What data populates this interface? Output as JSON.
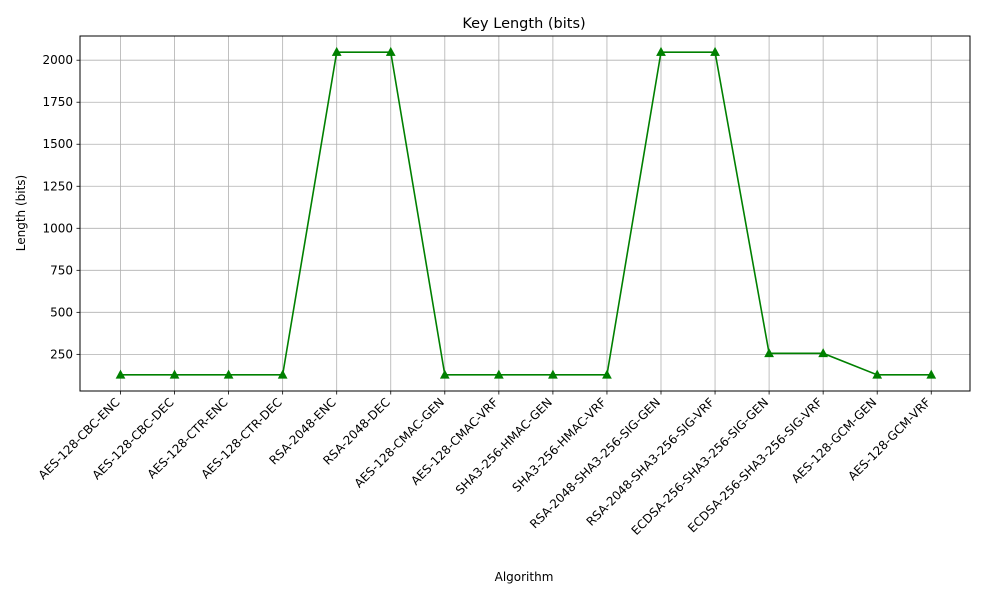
{
  "chart_data": {
    "type": "line",
    "title": "Key Length (bits)",
    "xlabel": "Algorithm",
    "ylabel": "Length (bits)",
    "categories": [
      "AES-128-CBC-ENC",
      "AES-128-CBC-DEC",
      "AES-128-CTR-ENC",
      "AES-128-CTR-DEC",
      "RSA-2048-ENC",
      "RSA-2048-DEC",
      "AES-128-CMAC-GEN",
      "AES-128-CMAC-VRF",
      "SHA3-256-HMAC-GEN",
      "SHA3-256-HMAC-VRF",
      "RSA-2048-SHA3-256-SIG-GEN",
      "RSA-2048-SHA3-256-SIG-VRF",
      "ECDSA-256-SHA3-256-SIG-GEN",
      "ECDSA-256-SHA3-256-SIG-VRF",
      "AES-128-GCM-GEN",
      "AES-128-GCM-VRF"
    ],
    "series": [
      {
        "values": [
          128,
          128,
          128,
          128,
          2048,
          2048,
          128,
          128,
          128,
          128,
          2048,
          2048,
          256,
          256,
          128,
          128
        ],
        "color": "#008000",
        "marker": "triangle-up"
      }
    ],
    "yticks": [
      250,
      500,
      750,
      1000,
      1250,
      1500,
      1750,
      2000
    ],
    "ylim": [
      32,
      2144
    ],
    "grid": true,
    "x_tick_rotation_deg": 45
  }
}
